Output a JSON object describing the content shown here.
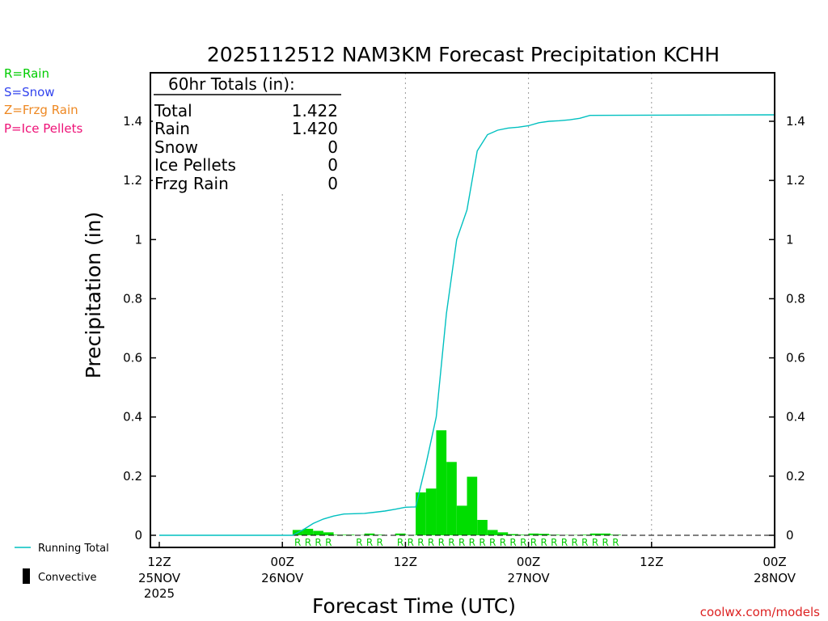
{
  "chart_data": {
    "type": "bar",
    "title": "2025112512 NAM3KM Forecast Precipitation KCHH",
    "xlabel": "Forecast Time (UTC)",
    "ylabel": "Precipitation (in)",
    "ylim": [
      -0.04,
      1.58
    ],
    "xlim_hours": [
      0,
      60
    ],
    "yticks": [
      {
        "value": 0,
        "label": "0"
      },
      {
        "value": 0.2,
        "label": "0.2"
      },
      {
        "value": 0.4,
        "label": "0.4"
      },
      {
        "value": 0.6,
        "label": "0.6"
      },
      {
        "value": 0.8,
        "label": "0.8"
      },
      {
        "value": 1.0,
        "label": "1"
      },
      {
        "value": 1.2,
        "label": "1.2"
      },
      {
        "value": 1.4,
        "label": "1.4"
      }
    ],
    "xticks": [
      {
        "hour": 0,
        "time": "12Z",
        "date": "25NOV",
        "year": "2025"
      },
      {
        "hour": 12,
        "time": "00Z",
        "date": "26NOV",
        "year": ""
      },
      {
        "hour": 24,
        "time": "12Z",
        "date": "",
        "year": ""
      },
      {
        "hour": 36,
        "time": "00Z",
        "date": "27NOV",
        "year": ""
      },
      {
        "hour": 48,
        "time": "12Z",
        "date": "",
        "year": ""
      },
      {
        "hour": 60,
        "time": "00Z",
        "date": "28NOV",
        "year": ""
      }
    ],
    "hourly_precip": {
      "name": "Hourly Precipitation",
      "color": "#00dd00",
      "hours": [
        14,
        15,
        16,
        17,
        18,
        19,
        20,
        21,
        22,
        23,
        24,
        25,
        26,
        27,
        28,
        29,
        30,
        31,
        32,
        33,
        34,
        35,
        36,
        37,
        38,
        39,
        40,
        41,
        42,
        43,
        44,
        45
      ],
      "values": [
        0.018,
        0.022,
        0.015,
        0.01,
        0.002,
        0.002,
        0.001,
        0.006,
        0.002,
        0.0,
        0.006,
        0.001,
        0.145,
        0.158,
        0.355,
        0.248,
        0.1,
        0.198,
        0.052,
        0.018,
        0.01,
        0.004,
        0.002,
        0.006,
        0.005,
        0.002,
        0.001,
        0.001,
        0.002,
        0.006,
        0.006,
        0.002
      ],
      "precip_type": [
        "R",
        "R",
        "R",
        "R",
        "",
        "",
        "R",
        "R",
        "R",
        "",
        "R",
        "R",
        "R",
        "R",
        "R",
        "R",
        "R",
        "R",
        "R",
        "R",
        "R",
        "R",
        "R",
        "R",
        "R",
        "R",
        "R",
        "R",
        "R",
        "R",
        "R",
        "R"
      ]
    },
    "running_total": {
      "name": "Running Total",
      "color": "#00c0c0",
      "points": [
        [
          0,
          0
        ],
        [
          1,
          0
        ],
        [
          13,
          0
        ],
        [
          14,
          0.018
        ],
        [
          15,
          0.04
        ],
        [
          16,
          0.055
        ],
        [
          17,
          0.065
        ],
        [
          18,
          0.072
        ],
        [
          19,
          0.073
        ],
        [
          20,
          0.074
        ],
        [
          21,
          0.078
        ],
        [
          22,
          0.082
        ],
        [
          23,
          0.088
        ],
        [
          24,
          0.095
        ],
        [
          25,
          0.096
        ],
        [
          26,
          0.24
        ],
        [
          27,
          0.4
        ],
        [
          28,
          0.75
        ],
        [
          29,
          1.0
        ],
        [
          30,
          1.1
        ],
        [
          31,
          1.3
        ],
        [
          32,
          1.355
        ],
        [
          33,
          1.37
        ],
        [
          34,
          1.377
        ],
        [
          35,
          1.38
        ],
        [
          36,
          1.385
        ],
        [
          37,
          1.395
        ],
        [
          38,
          1.4
        ],
        [
          39,
          1.402
        ],
        [
          40,
          1.405
        ],
        [
          41,
          1.41
        ],
        [
          42,
          1.42
        ],
        [
          60,
          1.422
        ]
      ]
    },
    "legend": [
      {
        "code": "R",
        "label": "R=Rain",
        "color": "#00cc00"
      },
      {
        "code": "S",
        "label": "S=Snow",
        "color": "#3344ee"
      },
      {
        "code": "Z",
        "label": "Z=Frzg Rain",
        "color": "#ee8822"
      },
      {
        "code": "P",
        "label": "P=Ice Pellets",
        "color": "#ee1177"
      }
    ],
    "bottom_legend": [
      {
        "label": "Running Total",
        "color": "#00c0c0"
      },
      {
        "label": "Convective",
        "color": "#000000"
      }
    ],
    "totals_box": {
      "heading": "60hr Totals (in):",
      "rows": [
        {
          "label": "Total",
          "value": "1.422"
        },
        {
          "label": "Rain",
          "value": "1.420"
        },
        {
          "label": "Snow",
          "value": "0"
        },
        {
          "label": "Ice Pellets",
          "value": "0"
        },
        {
          "label": "Frzg Rain",
          "value": "0"
        }
      ]
    },
    "credit": "coolwx.com/models"
  }
}
